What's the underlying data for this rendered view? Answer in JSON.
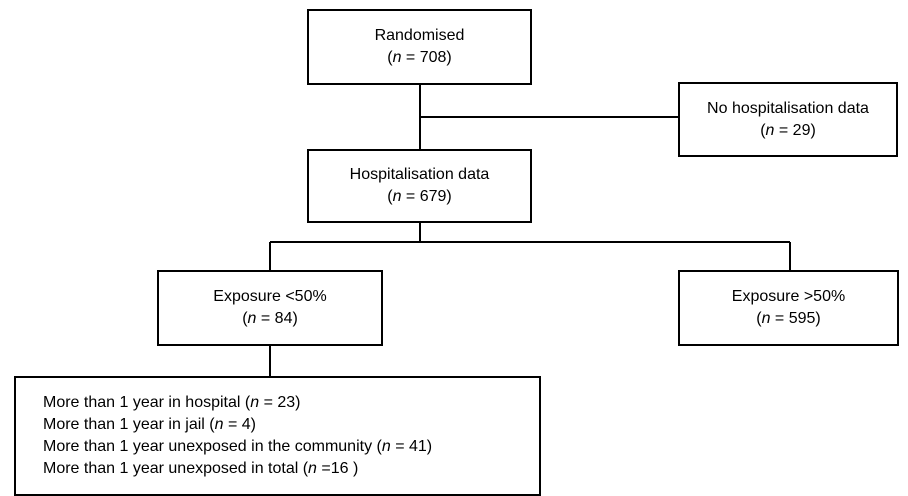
{
  "nodes": {
    "randomised": {
      "label": "Randomised",
      "n_prefix": "(",
      "n_var": "n",
      "n_value": " = 708)"
    },
    "no_hosp": {
      "label": "No hospitalisation data",
      "n_prefix": "(",
      "n_var": "n",
      "n_value": " = 29)"
    },
    "hosp_data": {
      "label": "Hospitalisation data",
      "n_prefix": "(",
      "n_var": "n",
      "n_value": " = 679)"
    },
    "exposure_low": {
      "label": "Exposure <50%",
      "n_prefix": "(",
      "n_var": "n",
      "n_value": " = 84)"
    },
    "exposure_high": {
      "label": "Exposure >50%",
      "n_prefix": "(",
      "n_var": "n",
      "n_value": " = 595)"
    }
  },
  "breakdown": {
    "items": [
      {
        "text": "More than 1 year in hospital (",
        "n_var": "n",
        "n_value": " = 23)"
      },
      {
        "text": "More than 1 year in jail (",
        "n_var": "n",
        "n_value": " = 4)"
      },
      {
        "text": "More than 1 year unexposed in the community (",
        "n_var": "n",
        "n_value": " = 41)"
      },
      {
        "text": "More than 1 year unexposed in total (",
        "n_var": "n",
        "n_value": " =16 )"
      }
    ]
  }
}
